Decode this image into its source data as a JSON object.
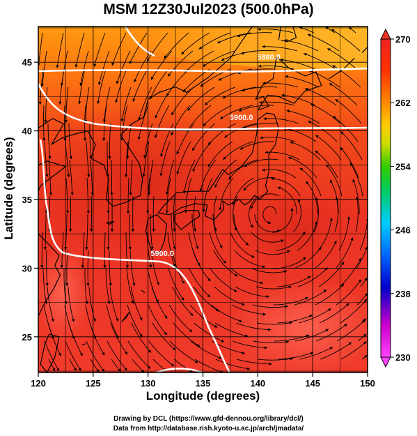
{
  "title": "MSM 12Z30Jul2023 (500.0hPa)",
  "xlabel": "Longitude (degrees)",
  "ylabel": "Latitude  (degrees)",
  "footer_line1": "Drawing by DCL (https://www.gfd-dennou.org/library/dcl/)",
  "footer_line2": "Data from http://database.rish.kyoto-u.ac.jp/arch/jmadata/",
  "map": {
    "lon_range": [
      120,
      150
    ],
    "lat_range": [
      22.4,
      47.6
    ],
    "lon_ticks": [
      120,
      125,
      130,
      135,
      140,
      145,
      150
    ],
    "lat_ticks": [
      25,
      30,
      35,
      40,
      45
    ],
    "grid": true,
    "field": "temperature shading with streamlines",
    "contours": [
      {
        "label": "5880.0",
        "lon": 141,
        "lat": 45.4
      },
      {
        "label": "5900.0",
        "lon": 138.5,
        "lat": 41.0
      },
      {
        "label": "5900.0",
        "lon": 131.3,
        "lat": 31.1
      }
    ],
    "cyclone_center": {
      "lon": 141.2,
      "lat": 34.0
    }
  },
  "colorbar": {
    "min": 230,
    "max": 270,
    "labels": [
      "270",
      "262",
      "254",
      "246",
      "238",
      "230"
    ],
    "values": [
      270,
      262,
      254,
      246,
      238,
      230
    ],
    "colors": [
      "#ff44ff",
      "#cc00cc",
      "#0000cc",
      "#0066ff",
      "#00ccff",
      "#00cc66",
      "#33cc00",
      "#ccdd00",
      "#ffcc00",
      "#ff8800",
      "#ff3300",
      "#ee2222"
    ]
  }
}
